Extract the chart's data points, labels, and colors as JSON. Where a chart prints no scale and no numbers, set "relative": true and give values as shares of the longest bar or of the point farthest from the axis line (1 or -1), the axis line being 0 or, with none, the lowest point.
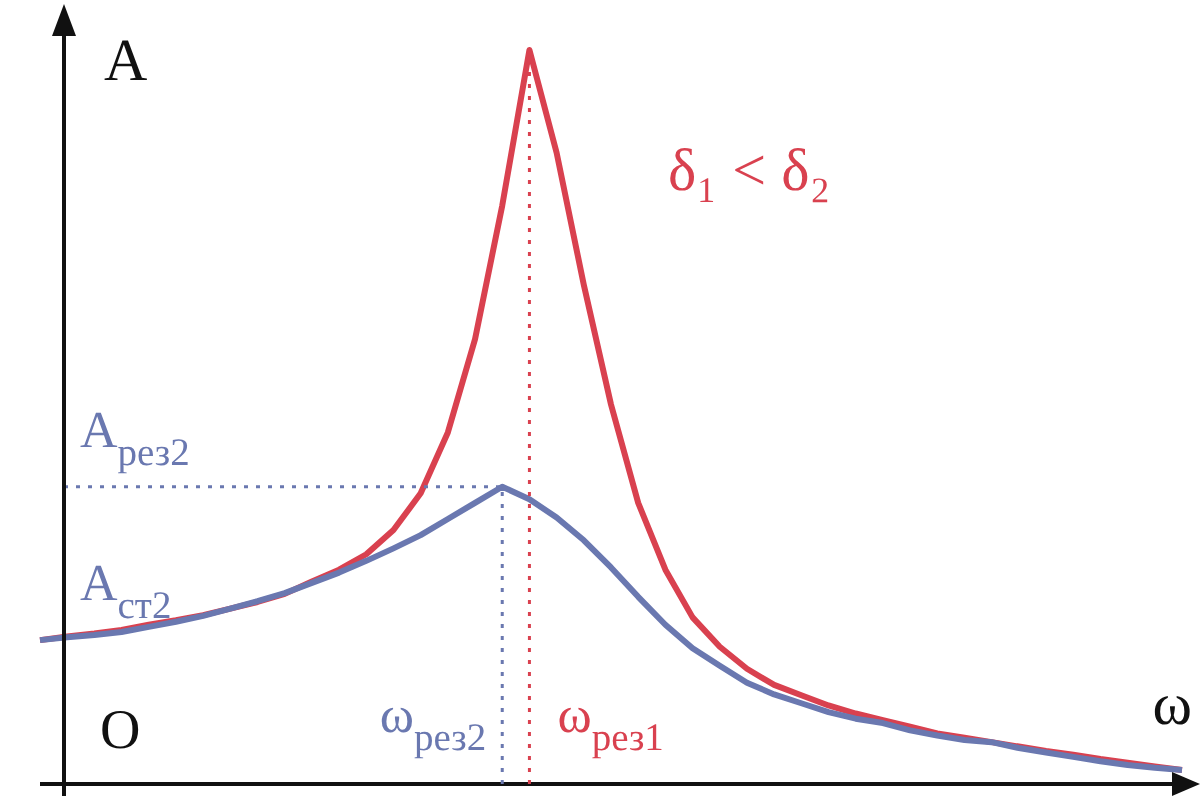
{
  "chart_data": {
    "type": "line",
    "relative": true,
    "xlabel": "ω",
    "ylabel": "A",
    "legend": false,
    "marker": "none",
    "categories": [
      null,
      null,
      null,
      null,
      null,
      null,
      null,
      null,
      null,
      null,
      null,
      null,
      null,
      null,
      null,
      null,
      null,
      null,
      null,
      null,
      null,
      null,
      null,
      null,
      null,
      null,
      null,
      null,
      null,
      null,
      null,
      null,
      null,
      null,
      null,
      null,
      null,
      null,
      null,
      null,
      null,
      null,
      null
    ],
    "series": [
      {
        "color": "#d9414f",
        "values": [
          0.196,
          0.201,
          0.205,
          0.21,
          0.217,
          0.223,
          0.23,
          0.239,
          0.248,
          0.259,
          0.276,
          0.292,
          0.313,
          0.346,
          0.396,
          0.479,
          0.606,
          0.788,
          1,
          0.86,
          0.68,
          0.517,
          0.383,
          0.292,
          0.227,
          0.187,
          0.157,
          0.135,
          0.121,
          0.107,
          0.096,
          0.087,
          0.078,
          0.069,
          0.063,
          0.057,
          0.051,
          0.045,
          0.04,
          0.034,
          0.029,
          0.024,
          0.019
        ]
      },
      {
        "color": "#6a78b0",
        "values": [
          0.196,
          0.2,
          0.203,
          0.207,
          0.214,
          0.221,
          0.229,
          0.239,
          0.249,
          0.26,
          0.274,
          0.288,
          0.304,
          0.321,
          0.339,
          0.361,
          0.383,
          0.405,
          0.388,
          0.363,
          0.332,
          0.295,
          0.255,
          0.217,
          0.185,
          0.161,
          0.138,
          0.122,
          0.11,
          0.098,
          0.089,
          0.083,
          0.073,
          0.066,
          0.06,
          0.057,
          0.049,
          0.043,
          0.037,
          0.031,
          0.026,
          0.022,
          0.019
        ]
      }
    ],
    "ref_lines": [
      {
        "axis": "y",
        "value": 0.405,
        "label": "A$_{рез2}$",
        "color": "#6a78b0",
        "line_style": "dotted"
      }
    ],
    "annotations": [
      "A$_{ст2}$",
      "O",
      "δ₁ < δ₂",
      "ω$_{рез2}$",
      "ω$_{рез1}$"
    ]
  }
}
